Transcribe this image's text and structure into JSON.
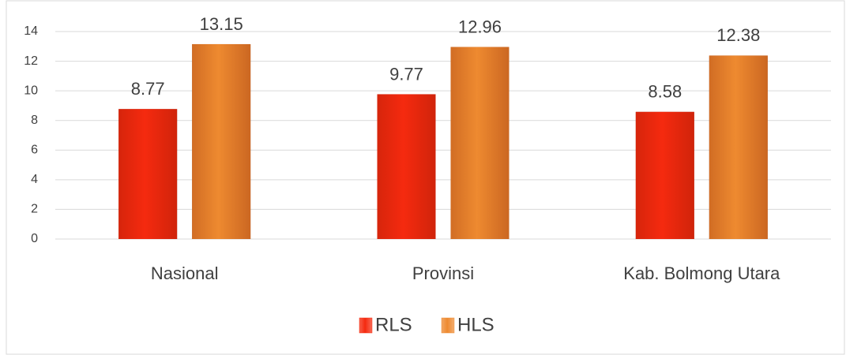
{
  "chart_data": {
    "type": "bar",
    "categories": [
      "Nasional",
      "Provinsi",
      "Kab. Bolmong Utara"
    ],
    "series": [
      {
        "name": "RLS",
        "color": "#f52a0f",
        "values": [
          8.77,
          9.77,
          8.58
        ]
      },
      {
        "name": "HLS",
        "color": "#ee8a30",
        "values": [
          13.15,
          12.96,
          12.38
        ]
      }
    ],
    "ylim": [
      0,
      14
    ],
    "yticks": [
      0,
      2,
      4,
      6,
      8,
      10,
      12,
      14
    ],
    "grid": true,
    "legend": "bottom"
  }
}
